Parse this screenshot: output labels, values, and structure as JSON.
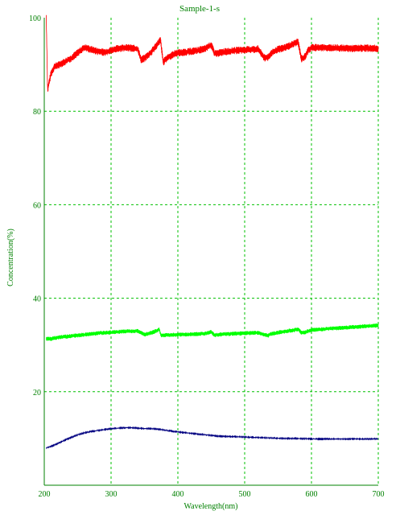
{
  "chart_data": {
    "type": "line",
    "title": "Sample-1-s",
    "xlabel": "Wavelength(nm)",
    "ylabel": "Concentration(%)",
    "xlim": [
      200,
      700
    ],
    "ylim": [
      0,
      100
    ],
    "xticks": [
      200,
      300,
      400,
      500,
      600,
      700
    ],
    "yticks": [
      20,
      40,
      60,
      80,
      100
    ],
    "xtick_labels": [
      "200",
      "300",
      "400",
      "500",
      "600",
      "700"
    ],
    "ytick_labels": [
      "20",
      "40",
      "60",
      "80",
      "100"
    ],
    "grid": true,
    "colors": {
      "text": "#008000",
      "axis": "#008000",
      "grid": "#00c000"
    },
    "series": [
      {
        "color": "#ff0000",
        "x": [
          203,
          205,
          207,
          210,
          215,
          220,
          230,
          240,
          250,
          260,
          270,
          280,
          290,
          300,
          310,
          320,
          330,
          340,
          345,
          350,
          360,
          370,
          374,
          378,
          385,
          395,
          400,
          410,
          420,
          430,
          440,
          450,
          455,
          460,
          470,
          480,
          490,
          500,
          510,
          520,
          530,
          535,
          540,
          550,
          560,
          570,
          580,
          585,
          590,
          595,
          600,
          620,
          640,
          660,
          680,
          700
        ],
        "y": [
          100,
          84.5,
          86,
          88,
          89.5,
          89.8,
          90.5,
          91.3,
          92.5,
          93.6,
          93.2,
          92.8,
          92.6,
          93.0,
          93.4,
          93.6,
          93.5,
          93.3,
          91.0,
          91.3,
          92.6,
          94.5,
          95.2,
          90.5,
          91.5,
          92.3,
          92.5,
          92.6,
          92.8,
          93.0,
          93.3,
          94.2,
          92.3,
          92.4,
          92.7,
          92.9,
          93.0,
          93.1,
          93.2,
          93.3,
          91.3,
          91.6,
          92.4,
          93.2,
          93.6,
          94.2,
          94.8,
          91.2,
          91.6,
          93.0,
          93.6,
          93.6,
          93.5,
          93.4,
          93.5,
          93.4
        ],
        "noise": 1.6
      },
      {
        "color": "#00ff00",
        "x": [
          203,
          210,
          220,
          240,
          260,
          280,
          300,
          320,
          340,
          350,
          360,
          370,
          372,
          375,
          380,
          400,
          420,
          440,
          450,
          455,
          460,
          480,
          500,
          520,
          530,
          535,
          540,
          560,
          575,
          580,
          585,
          590,
          600,
          620,
          640,
          660,
          680,
          700
        ],
        "y": [
          31.3,
          31.3,
          31.6,
          31.9,
          32.2,
          32.5,
          32.7,
          32.9,
          33.0,
          32.2,
          32.6,
          33.1,
          33.4,
          32.0,
          32.1,
          32.2,
          32.3,
          32.4,
          32.8,
          32.1,
          32.2,
          32.4,
          32.5,
          32.6,
          32.2,
          32.0,
          32.4,
          32.9,
          33.2,
          33.4,
          32.6,
          32.7,
          33.2,
          33.4,
          33.6,
          33.8,
          34.0,
          34.2
        ],
        "noise": 0.9
      },
      {
        "color": "#000080",
        "x": [
          203,
          210,
          220,
          230,
          240,
          250,
          260,
          270,
          280,
          290,
          300,
          310,
          320,
          330,
          340,
          350,
          360,
          370,
          380,
          390,
          400,
          420,
          440,
          460,
          480,
          500,
          520,
          540,
          560,
          580,
          600,
          620,
          640,
          660,
          680,
          700
        ],
        "y": [
          8.0,
          8.3,
          8.9,
          9.6,
          10.2,
          10.8,
          11.2,
          11.5,
          11.7,
          11.9,
          12.1,
          12.2,
          12.3,
          12.3,
          12.2,
          12.1,
          12.1,
          12.0,
          11.8,
          11.6,
          11.4,
          11.1,
          10.8,
          10.5,
          10.4,
          10.3,
          10.2,
          10.1,
          10.0,
          10.0,
          9.9,
          9.9,
          9.9,
          9.9,
          9.9,
          9.9
        ],
        "noise": 0.2
      }
    ]
  }
}
